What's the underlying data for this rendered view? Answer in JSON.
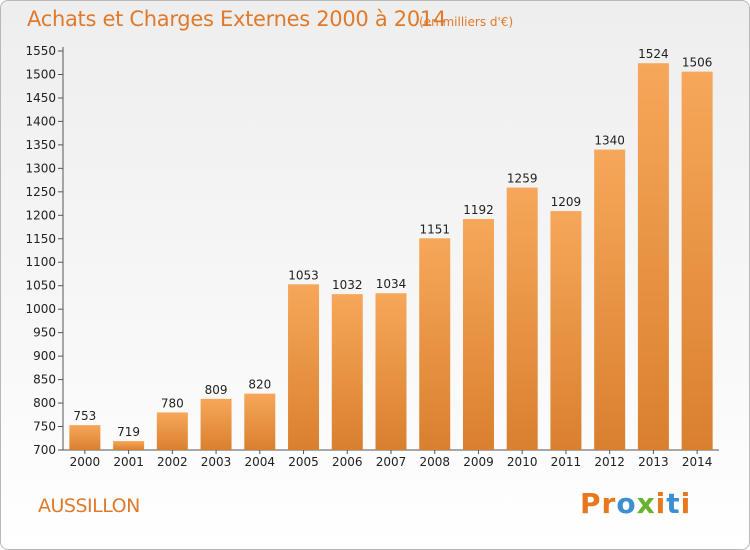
{
  "header": {
    "title": "Achats et Charges Externes 2000 à 2014",
    "unit": "(en milliers d'€)"
  },
  "footer": {
    "commune": "AUSSILLON",
    "logo_text": "Proxiti"
  },
  "colors": {
    "accent": "#e07a2a",
    "bar_light": "#f7a75a",
    "bar_dark": "#d9802f",
    "logo": [
      "#e8781e",
      "#e8781e",
      "#3c8fd1",
      "#67b32e",
      "#e8781e",
      "#3c8fd1",
      "#e8781e"
    ]
  },
  "chart_data": {
    "type": "bar",
    "title": "Achats et Charges Externes 2000 à 2014",
    "subtitle": "(en milliers d'€)",
    "xlabel": "",
    "ylabel": "",
    "categories": [
      "2000",
      "2001",
      "2002",
      "2003",
      "2004",
      "2005",
      "2006",
      "2007",
      "2008",
      "2009",
      "2010",
      "2011",
      "2012",
      "2013",
      "2014"
    ],
    "values": [
      753,
      719,
      780,
      809,
      820,
      1053,
      1032,
      1034,
      1151,
      1192,
      1259,
      1209,
      1340,
      1524,
      1506
    ],
    "ylim": [
      700,
      1550
    ],
    "yticks": [
      700,
      750,
      800,
      850,
      900,
      950,
      1000,
      1050,
      1100,
      1150,
      1200,
      1250,
      1300,
      1350,
      1400,
      1450,
      1500,
      1550
    ],
    "grid": false,
    "legend": "none"
  }
}
